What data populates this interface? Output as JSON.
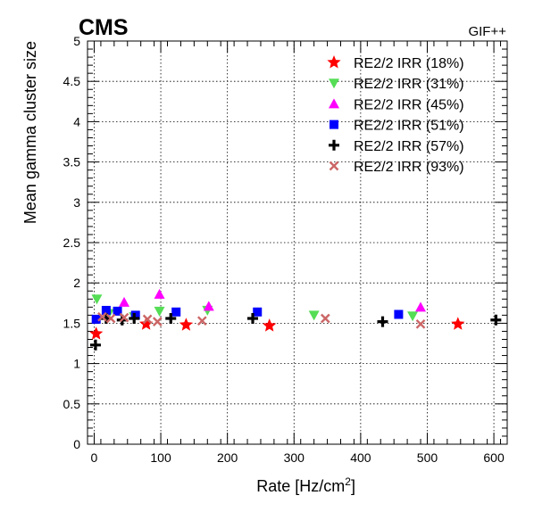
{
  "chart_data": {
    "type": "scatter",
    "title": "",
    "experiment_label": "CMS",
    "facility_label": "GIF++",
    "xlabel": {
      "main": "Rate [Hz/cm",
      "superscript": "2",
      "close": "]"
    },
    "ylabel": "Mean gamma cluster size",
    "xlim": [
      -10,
      620
    ],
    "ylim": [
      0,
      5
    ],
    "x_ticks": [
      0,
      100,
      200,
      300,
      400,
      500,
      600
    ],
    "y_ticks": [
      0,
      0.5,
      1,
      1.5,
      2,
      2.5,
      3,
      3.5,
      4,
      4.5,
      5
    ],
    "y_tick_labels": [
      "0",
      "0.5",
      "1",
      "1.5",
      "2",
      "2.5",
      "3",
      "3.5",
      "4",
      "4.5",
      "5"
    ],
    "grid": true,
    "legend_position": "top-right",
    "series": [
      {
        "name": "RE2/2 IRR (18%)",
        "marker": "star",
        "color": "#ff0000",
        "x": [
          3,
          78,
          138,
          263,
          546
        ],
        "y": [
          1.37,
          1.49,
          1.48,
          1.47,
          1.49
        ]
      },
      {
        "name": "RE2/2 IRR (31%)",
        "marker": "triangle-down",
        "color": "#55dd55",
        "x": [
          4,
          22,
          60,
          98,
          170,
          330,
          478
        ],
        "y": [
          1.8,
          1.62,
          1.58,
          1.65,
          1.66,
          1.6,
          1.59
        ]
      },
      {
        "name": "RE2/2 IRR (45%)",
        "marker": "triangle-up",
        "color": "#ff00ff",
        "x": [
          45,
          98,
          172,
          490
        ],
        "y": [
          1.76,
          1.86,
          1.71,
          1.7
        ]
      },
      {
        "name": "RE2/2 IRR (51%)",
        "marker": "square",
        "color": "#0000ff",
        "x": [
          3,
          18,
          35,
          62,
          123,
          245,
          457
        ],
        "y": [
          1.55,
          1.66,
          1.65,
          1.6,
          1.64,
          1.64,
          1.61
        ]
      },
      {
        "name": "RE2/2 IRR (57%)",
        "marker": "plus",
        "color": "#000000",
        "x": [
          2,
          18,
          42,
          60,
          115,
          238,
          433,
          603
        ],
        "y": [
          1.23,
          1.56,
          1.54,
          1.56,
          1.56,
          1.56,
          1.52,
          1.54
        ]
      },
      {
        "name": "RE2/2 IRR (93%)",
        "marker": "cross",
        "color": "#cc6666",
        "x": [
          12,
          25,
          45,
          80,
          95,
          162,
          347,
          490
        ],
        "y": [
          1.58,
          1.56,
          1.57,
          1.55,
          1.52,
          1.53,
          1.56,
          1.49
        ]
      }
    ]
  }
}
